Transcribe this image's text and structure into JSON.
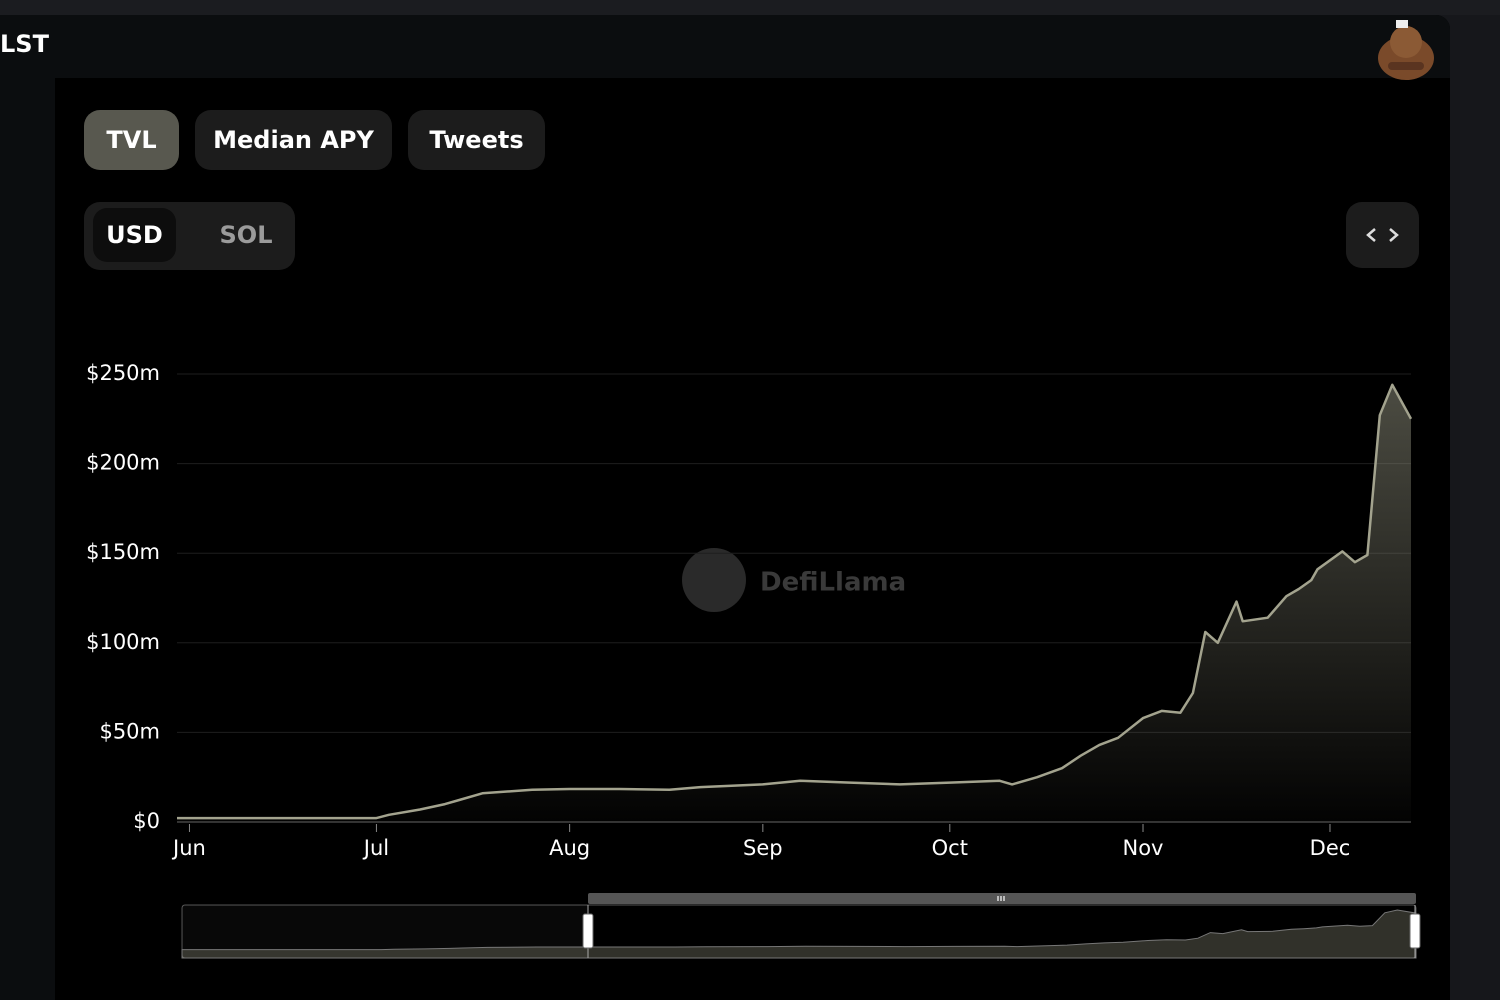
{
  "header": {
    "title": "LST"
  },
  "tabs": [
    "TVL",
    "Median APY",
    "Tweets"
  ],
  "currency_toggle": [
    "USD",
    "SOL"
  ],
  "watermark": "DefiLlama",
  "chart_data": {
    "type": "area",
    "x": [
      -2,
      30,
      32,
      37,
      41,
      43,
      47,
      55,
      61,
      69,
      77,
      82,
      92,
      98,
      106,
      114,
      122,
      130,
      132,
      136,
      140,
      143,
      146,
      149,
      153,
      156,
      159,
      161,
      163,
      165,
      168,
      169,
      173,
      176,
      178,
      180,
      181,
      185,
      187,
      189,
      191,
      193,
      196
    ],
    "values": [
      2.2,
      2.2,
      4,
      7,
      10,
      12,
      16,
      18,
      18.4,
      18.4,
      18,
      19.5,
      21,
      23,
      22,
      21,
      22,
      23,
      21,
      25,
      30,
      37,
      43,
      47,
      58,
      62,
      61,
      72,
      106,
      100,
      123,
      112,
      114,
      126,
      130,
      135,
      141,
      151,
      145,
      149,
      227,
      244,
      225
    ],
    "color": "#a3a38e",
    "xlim": [
      -2,
      196
    ],
    "xticks": [
      {
        "value": 0,
        "label": "Jun"
      },
      {
        "value": 30,
        "label": "Jul"
      },
      {
        "value": 61,
        "label": "Aug"
      },
      {
        "value": 92,
        "label": "Sep"
      },
      {
        "value": 122,
        "label": "Oct"
      },
      {
        "value": 153,
        "label": "Nov"
      },
      {
        "value": 183,
        "label": "Dec"
      }
    ],
    "ylim": [
      0,
      250
    ],
    "yticks": [
      {
        "value": 0,
        "label": "$0"
      },
      {
        "value": 50,
        "label": "$50m"
      },
      {
        "value": 100,
        "label": "$100m"
      },
      {
        "value": 150,
        "label": "$150m"
      },
      {
        "value": 200,
        "label": "$200m"
      },
      {
        "value": 250,
        "label": "$250m"
      }
    ],
    "grid": true
  }
}
